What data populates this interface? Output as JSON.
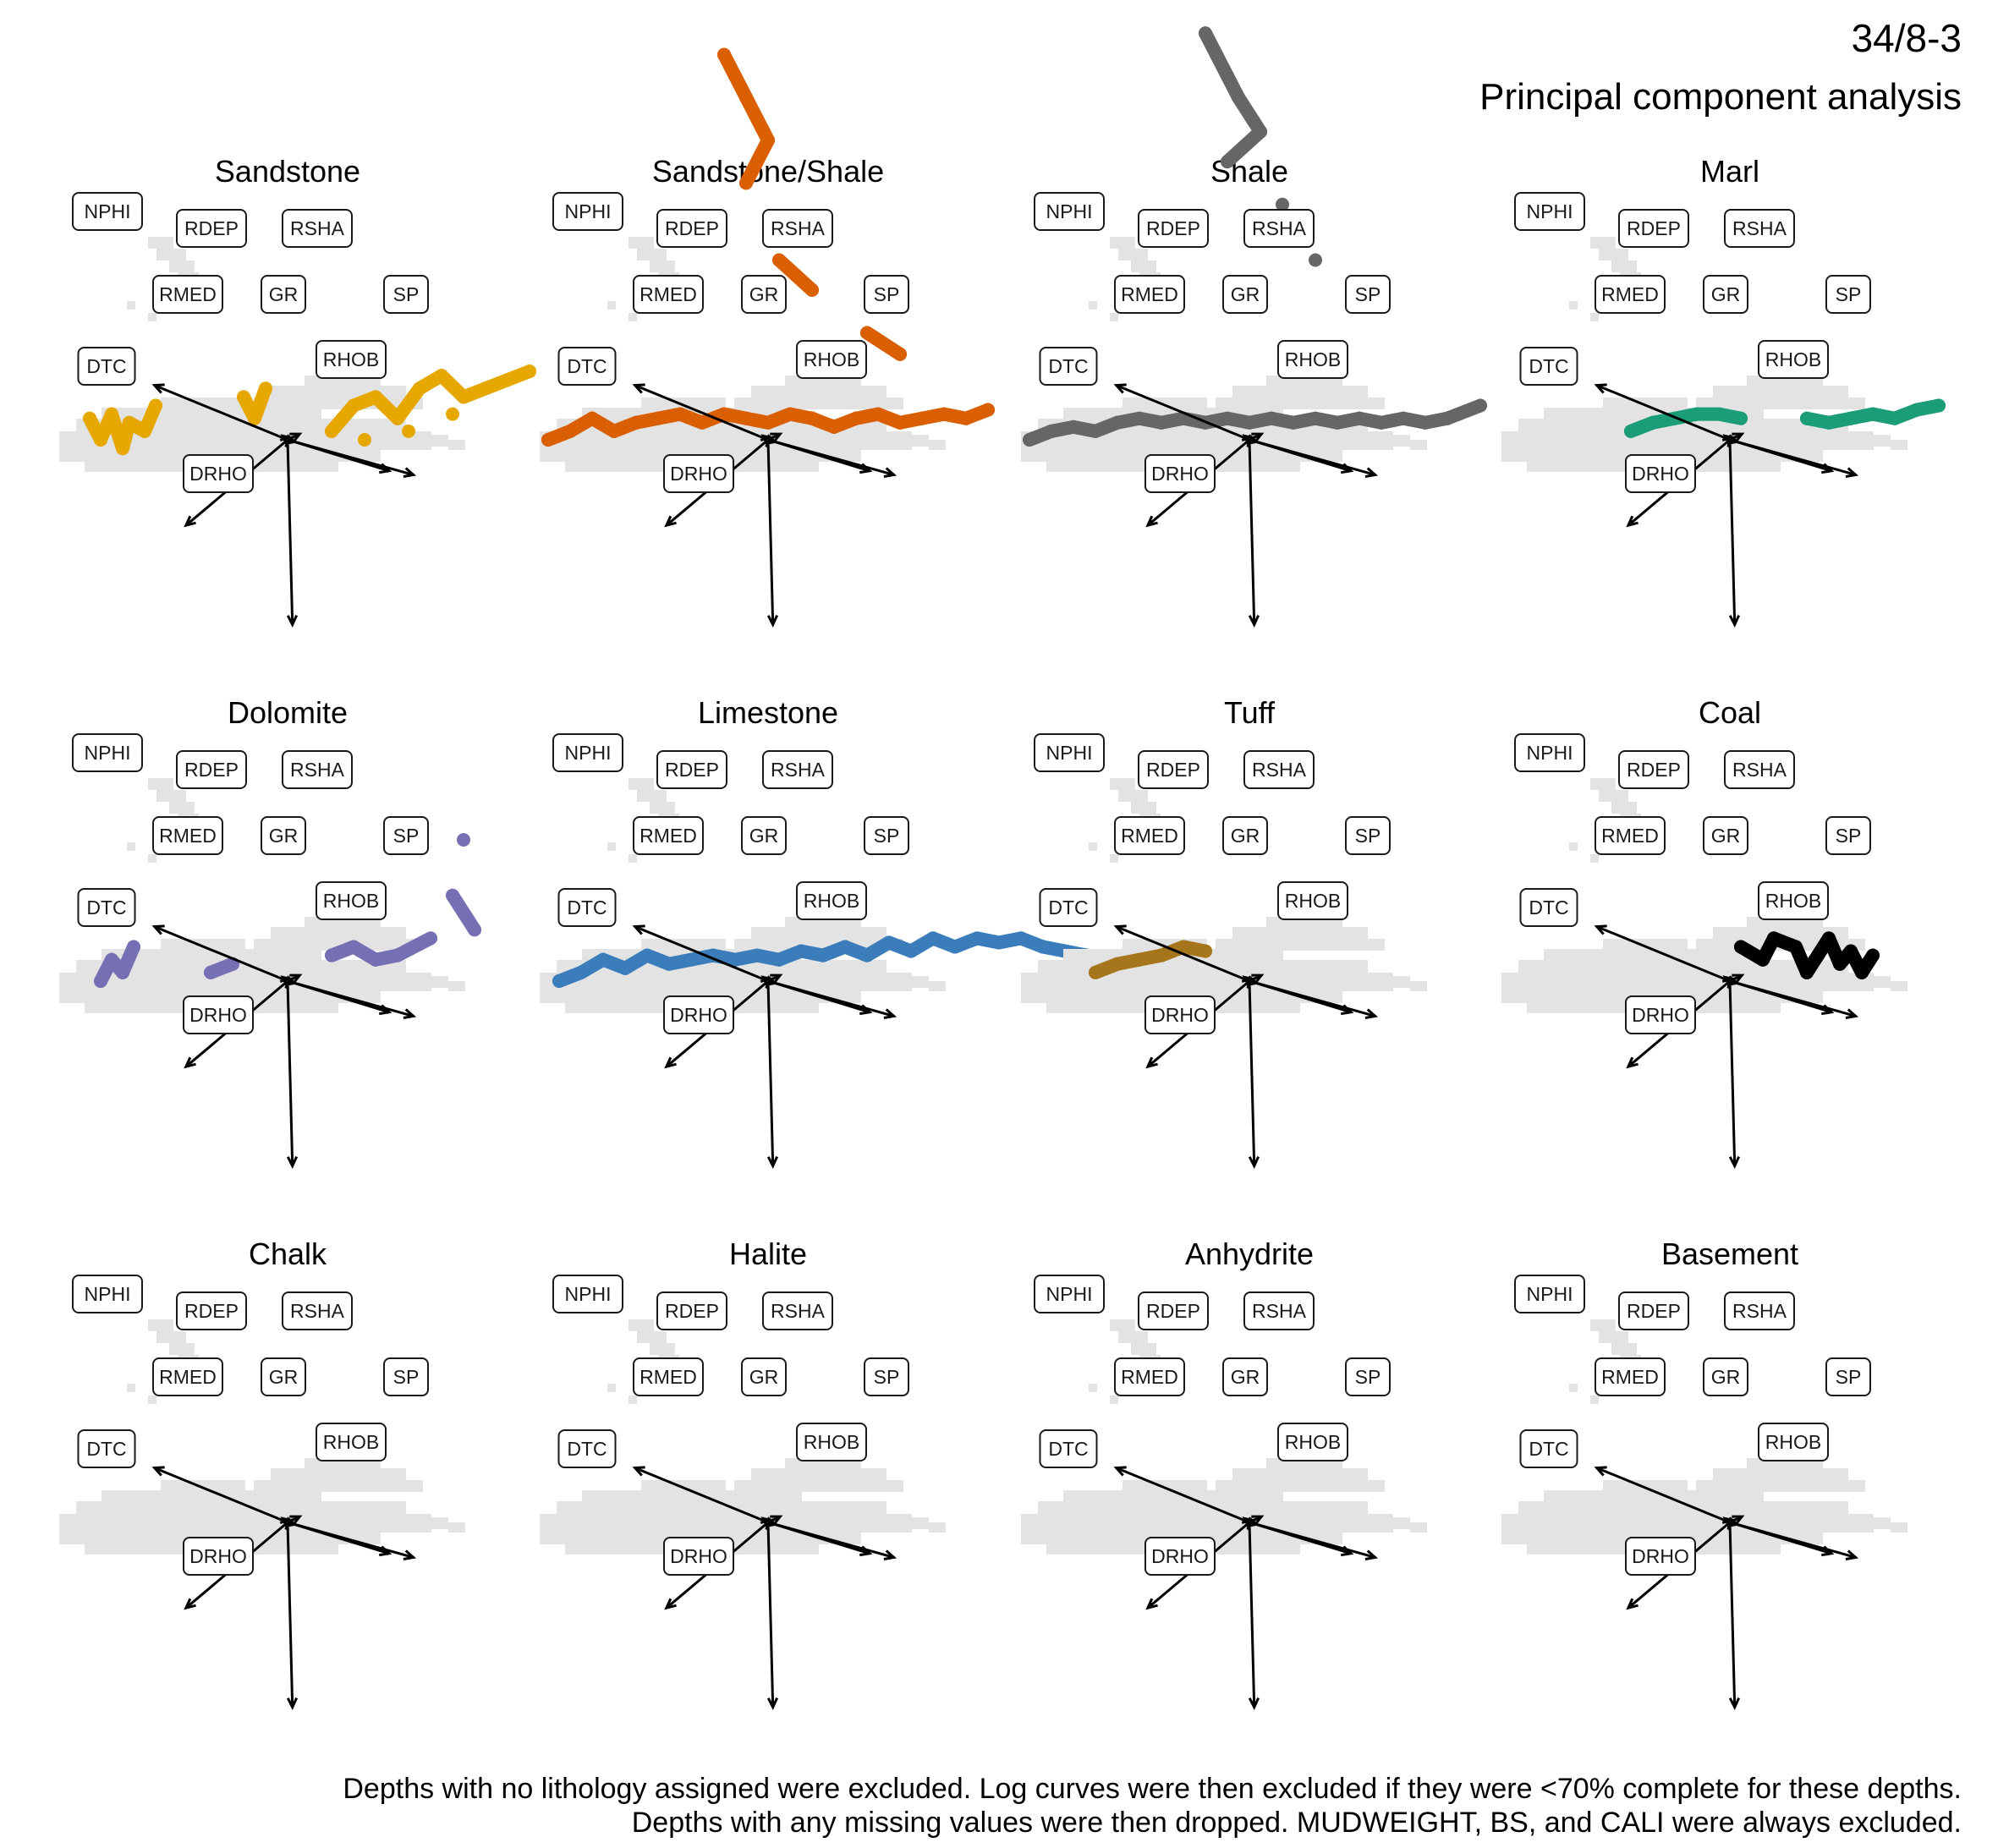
{
  "figure": {
    "title": "34/8-3",
    "subtitle": "Principal component analysis",
    "caption_lines": [
      "Depths with no lithology assigned were excluded. Log curves were then excluded if they were <70% complete for these depths.",
      "Depths with any missing values were then dropped. MUDWEIGHT, BS, and CALI were always excluded."
    ]
  },
  "chart_data": {
    "type": "scatter",
    "description_axes": "PCA biplot facets (axes not printed)",
    "loadings": [
      {
        "name": "NPHI",
        "x": -0.55,
        "y": 0.28
      },
      {
        "name": "RDEP",
        "x": -0.02,
        "y": 0.02
      },
      {
        "name": "RSHA",
        "x": 0.05,
        "y": 0.03
      },
      {
        "name": "RMED",
        "x": 0.01,
        "y": 0.01
      },
      {
        "name": "GR",
        "x": 0.03,
        "y": -0.01
      },
      {
        "name": "SP",
        "x": 0.52,
        "y": -0.18
      },
      {
        "name": "RHOB",
        "x": 0.42,
        "y": -0.16
      },
      {
        "name": "DTC",
        "x": -0.42,
        "y": -0.44
      },
      {
        "name": "DRHO",
        "x": 0.02,
        "y": -0.95
      }
    ],
    "facets": [
      {
        "name": "Sandstone",
        "color": "#E6A800",
        "points": [
          [
            -0.9,
            0.05
          ],
          [
            -0.85,
            0.0
          ],
          [
            -0.8,
            0.06
          ],
          [
            -0.75,
            -0.02
          ],
          [
            -0.72,
            0.04
          ],
          [
            -0.65,
            0.02
          ],
          [
            -0.6,
            0.08
          ],
          [
            -0.2,
            0.1
          ],
          [
            -0.15,
            0.05
          ],
          [
            -0.1,
            0.12
          ],
          [
            0.2,
            0.02
          ],
          [
            0.3,
            0.08
          ],
          [
            0.4,
            0.1
          ],
          [
            0.5,
            0.05
          ],
          [
            0.6,
            0.12
          ],
          [
            0.7,
            0.15
          ],
          [
            0.8,
            0.1
          ],
          [
            0.9,
            0.12
          ],
          [
            1.0,
            0.14
          ],
          [
            1.1,
            0.16
          ],
          [
            0.35,
            0.0
          ],
          [
            0.55,
            0.02
          ],
          [
            0.75,
            0.06
          ]
        ]
      },
      {
        "name": "Sandstone/Shale",
        "color": "#D95F02",
        "points": [
          [
            -0.2,
            0.9
          ],
          [
            -0.15,
            0.85
          ],
          [
            -0.1,
            0.8
          ],
          [
            -0.05,
            0.75
          ],
          [
            0.0,
            0.7
          ],
          [
            -0.1,
            0.6
          ],
          [
            0.05,
            0.42
          ],
          [
            0.2,
            0.35
          ],
          [
            0.45,
            0.25
          ],
          [
            0.6,
            0.2
          ],
          [
            -1.0,
            0.0
          ],
          [
            -0.9,
            0.02
          ],
          [
            -0.8,
            0.05
          ],
          [
            -0.7,
            0.02
          ],
          [
            -0.6,
            0.04
          ],
          [
            -0.5,
            0.05
          ],
          [
            -0.4,
            0.06
          ],
          [
            -0.3,
            0.04
          ],
          [
            -0.2,
            0.06
          ],
          [
            -0.1,
            0.05
          ],
          [
            0.0,
            0.04
          ],
          [
            0.1,
            0.06
          ],
          [
            0.2,
            0.05
          ],
          [
            0.3,
            0.03
          ],
          [
            0.4,
            0.05
          ],
          [
            0.5,
            0.06
          ],
          [
            0.6,
            0.04
          ],
          [
            0.7,
            0.05
          ],
          [
            0.8,
            0.06
          ],
          [
            0.9,
            0.05
          ],
          [
            1.0,
            0.07
          ]
        ]
      },
      {
        "name": "Shale",
        "color": "#666666",
        "points": [
          [
            -0.2,
            0.95
          ],
          [
            -0.15,
            0.9
          ],
          [
            -0.1,
            0.85
          ],
          [
            -0.05,
            0.8
          ],
          [
            0.05,
            0.72
          ],
          [
            -0.1,
            0.65
          ],
          [
            0.15,
            0.55
          ],
          [
            0.3,
            0.42
          ],
          [
            -1.0,
            0.0
          ],
          [
            -0.9,
            0.02
          ],
          [
            -0.8,
            0.03
          ],
          [
            -0.7,
            0.02
          ],
          [
            -0.6,
            0.04
          ],
          [
            -0.5,
            0.05
          ],
          [
            -0.4,
            0.04
          ],
          [
            -0.3,
            0.05
          ],
          [
            -0.2,
            0.04
          ],
          [
            -0.1,
            0.05
          ],
          [
            0.0,
            0.04
          ],
          [
            0.1,
            0.05
          ],
          [
            0.2,
            0.04
          ],
          [
            0.3,
            0.05
          ],
          [
            0.4,
            0.04
          ],
          [
            0.5,
            0.05
          ],
          [
            0.6,
            0.04
          ],
          [
            0.7,
            0.05
          ],
          [
            0.8,
            0.04
          ],
          [
            0.9,
            0.05
          ],
          [
            1.05,
            0.08
          ]
        ]
      },
      {
        "name": "Marl",
        "color": "#1B9E77",
        "points": [
          [
            -0.45,
            0.02
          ],
          [
            -0.35,
            0.04
          ],
          [
            -0.25,
            0.05
          ],
          [
            -0.15,
            0.06
          ],
          [
            -0.05,
            0.06
          ],
          [
            0.05,
            0.05
          ],
          [
            0.35,
            0.05
          ],
          [
            0.45,
            0.04
          ],
          [
            0.55,
            0.05
          ],
          [
            0.65,
            0.06
          ],
          [
            0.75,
            0.05
          ],
          [
            0.85,
            0.07
          ],
          [
            0.95,
            0.08
          ]
        ]
      },
      {
        "name": "Dolomite",
        "color": "#7570B3",
        "points": [
          [
            -0.85,
            0.0
          ],
          [
            -0.8,
            0.05
          ],
          [
            -0.75,
            0.02
          ],
          [
            -0.7,
            0.08
          ],
          [
            -0.35,
            0.02
          ],
          [
            -0.25,
            0.04
          ],
          [
            0.2,
            0.06
          ],
          [
            0.3,
            0.08
          ],
          [
            0.4,
            0.05
          ],
          [
            0.5,
            0.06
          ],
          [
            0.65,
            0.1
          ],
          [
            0.85,
            0.12
          ],
          [
            0.75,
            0.2
          ],
          [
            0.8,
            0.33
          ]
        ]
      },
      {
        "name": "Limestone",
        "color": "#3A7DBA",
        "points": [
          [
            -0.95,
            0.0
          ],
          [
            -0.85,
            0.02
          ],
          [
            -0.75,
            0.05
          ],
          [
            -0.65,
            0.03
          ],
          [
            -0.55,
            0.06
          ],
          [
            -0.45,
            0.04
          ],
          [
            -0.35,
            0.05
          ],
          [
            -0.25,
            0.06
          ],
          [
            -0.15,
            0.05
          ],
          [
            -0.05,
            0.06
          ],
          [
            0.05,
            0.05
          ],
          [
            0.15,
            0.07
          ],
          [
            0.25,
            0.06
          ],
          [
            0.35,
            0.08
          ],
          [
            0.45,
            0.06
          ],
          [
            0.55,
            0.09
          ],
          [
            0.65,
            0.07
          ],
          [
            0.75,
            0.1
          ],
          [
            0.85,
            0.08
          ],
          [
            0.95,
            0.1
          ],
          [
            1.05,
            0.09
          ],
          [
            1.15,
            0.1
          ],
          [
            1.25,
            0.08
          ],
          [
            1.35,
            0.07
          ],
          [
            1.45,
            0.06
          ]
        ]
      },
      {
        "name": "Tuff",
        "color": "#A6761D",
        "points": [
          [
            -0.7,
            0.02
          ],
          [
            -0.6,
            0.04
          ],
          [
            -0.5,
            0.05
          ],
          [
            -0.4,
            0.06
          ],
          [
            -0.3,
            0.08
          ],
          [
            -0.2,
            0.07
          ]
        ]
      },
      {
        "name": "Coal",
        "color": "#000000",
        "points": [
          [
            0.05,
            0.08
          ],
          [
            0.15,
            0.05
          ],
          [
            0.2,
            0.1
          ],
          [
            0.3,
            0.08
          ],
          [
            0.35,
            0.02
          ],
          [
            0.4,
            0.06
          ],
          [
            0.45,
            0.1
          ],
          [
            0.5,
            0.04
          ],
          [
            0.55,
            0.07
          ],
          [
            0.6,
            0.02
          ],
          [
            0.65,
            0.06
          ]
        ]
      },
      {
        "name": "Chalk",
        "color": "#999999",
        "points": []
      },
      {
        "name": "Halite",
        "color": "#999999",
        "points": []
      },
      {
        "name": "Anhydrite",
        "color": "#999999",
        "points": []
      },
      {
        "name": "Basement",
        "color": "#999999",
        "points": []
      }
    ]
  }
}
